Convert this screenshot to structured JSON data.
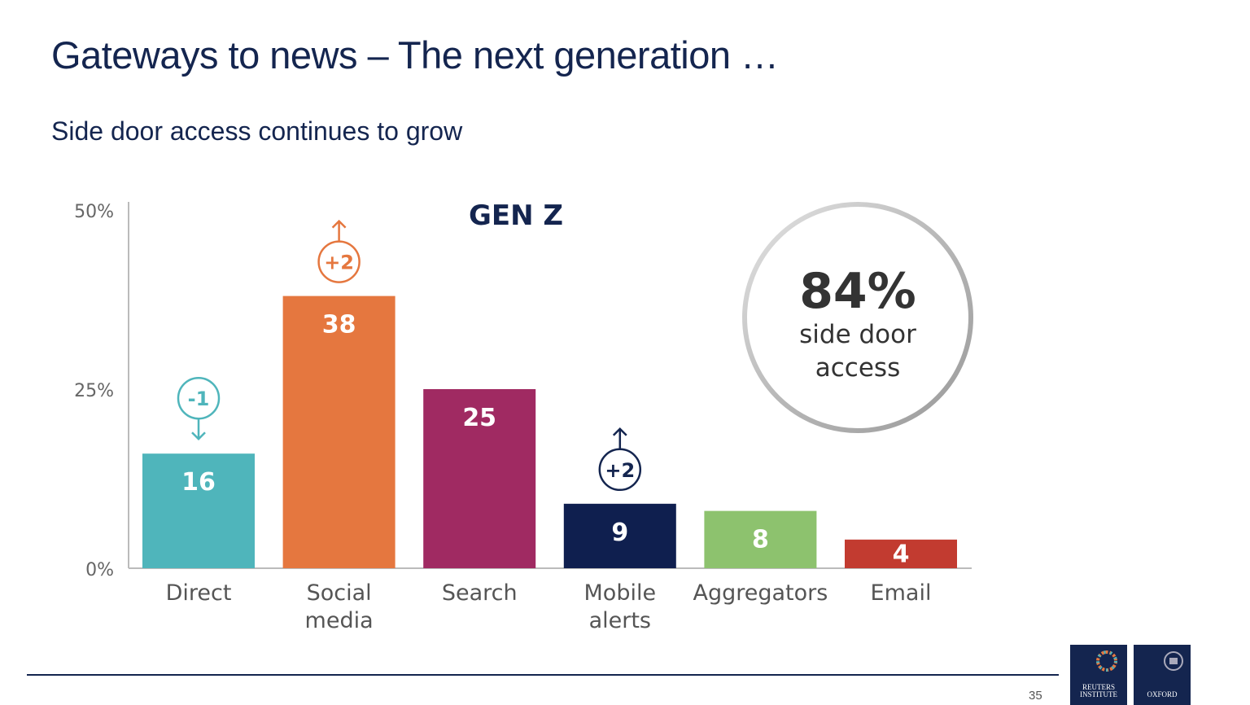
{
  "header": {
    "title": "Gateways to news – The next generation …",
    "subtitle": "Side door access continues to grow"
  },
  "chart_data": {
    "type": "bar",
    "title": "GEN Z",
    "categories": [
      "Direct",
      "Social media",
      "Search",
      "Mobile alerts",
      "Aggregators",
      "Email"
    ],
    "category_lines": [
      [
        "Direct"
      ],
      [
        "Social",
        "media"
      ],
      [
        "Search"
      ],
      [
        "Mobile",
        "alerts"
      ],
      [
        "Aggregators"
      ],
      [
        "Email"
      ]
    ],
    "values": [
      16,
      38,
      25,
      9,
      8,
      4
    ],
    "colors": [
      "#4fb5bb",
      "#e5773f",
      "#a02a62",
      "#0f1f4f",
      "#8dc26e",
      "#c23b30"
    ],
    "changes": [
      {
        "category": "Direct",
        "label": "-1",
        "direction": "down",
        "color": "#4fb5bb"
      },
      {
        "category": "Social media",
        "label": "+2",
        "direction": "up",
        "color": "#e5773f"
      },
      {
        "category": "Mobile alerts",
        "label": "+2",
        "direction": "up",
        "color": "#14254f"
      }
    ],
    "ylim": [
      0,
      50
    ],
    "yticks": [
      0,
      25,
      50
    ],
    "ytick_labels": [
      "0%",
      "25%",
      "50%"
    ],
    "grid": false,
    "callout": {
      "value": "84%",
      "text_lines": [
        "side door",
        "access"
      ]
    }
  },
  "footer": {
    "page_number": "35",
    "logos": [
      "REUTERS INSTITUTE",
      "UNIVERSITY OF OXFORD"
    ]
  }
}
